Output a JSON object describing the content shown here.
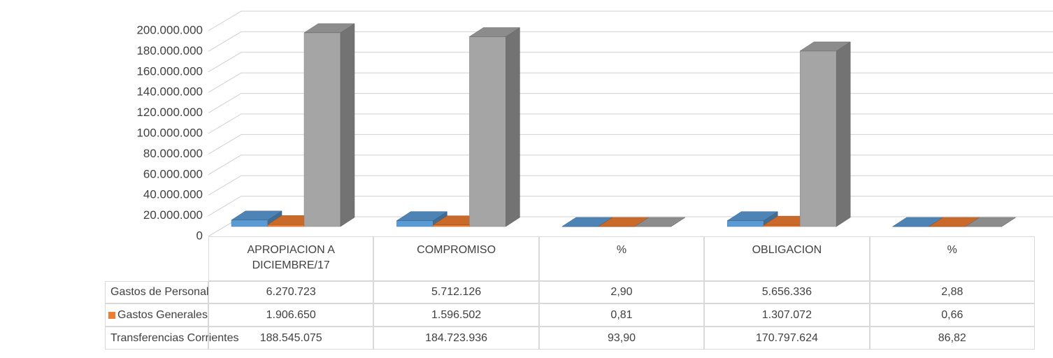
{
  "chart_data": {
    "type": "bar",
    "categories": [
      "APROPIACION A DICIEMBRE/17",
      "COMPROMISO",
      "%",
      "OBLIGACION",
      "%"
    ],
    "series": [
      {
        "name": "Gastos de Personal",
        "color": "#5b9bd5",
        "values": [
          6270723,
          5712126,
          2.9,
          5656336,
          2.88
        ],
        "value_labels": [
          "6.270.723",
          "5.712.126",
          "2,90",
          "5.656.336",
          "2,88"
        ]
      },
      {
        "name": "Gastos Generales",
        "color": "#ed7d31",
        "values": [
          1906650,
          1596502,
          0.81,
          1307072,
          0.66
        ],
        "value_labels": [
          "1.906.650",
          "1.596.502",
          "0,81",
          "1.307.072",
          "0,66"
        ]
      },
      {
        "name": "Transferencias Corrientes",
        "color": "#a5a5a5",
        "values": [
          188545075,
          184723936,
          93.9,
          170797624,
          86.82
        ],
        "value_labels": [
          "188.545.075",
          "184.723.936",
          "93,90",
          "170.797.624",
          "86,82"
        ]
      }
    ],
    "ylim": [
      0,
      200000000
    ],
    "yticks": [
      0,
      {
        "value": 20000000,
        "label": "20.000.000"
      },
      {
        "value": 40000000,
        "label": "40.000.000"
      },
      {
        "value": 60000000,
        "label": "60.000.000"
      },
      {
        "value": 80000000,
        "label": "80.000.000"
      },
      {
        "value": 100000000,
        "label": "100.000.000"
      },
      {
        "value": 120000000,
        "label": "120.000.000"
      },
      {
        "value": 140000000,
        "label": "140.000.000"
      },
      {
        "value": 160000000,
        "label": "160.000.000"
      },
      {
        "value": 180000000,
        "label": "180.000.000"
      },
      {
        "value": 200000000,
        "label": "200.000.000"
      }
    ],
    "grid": true
  }
}
